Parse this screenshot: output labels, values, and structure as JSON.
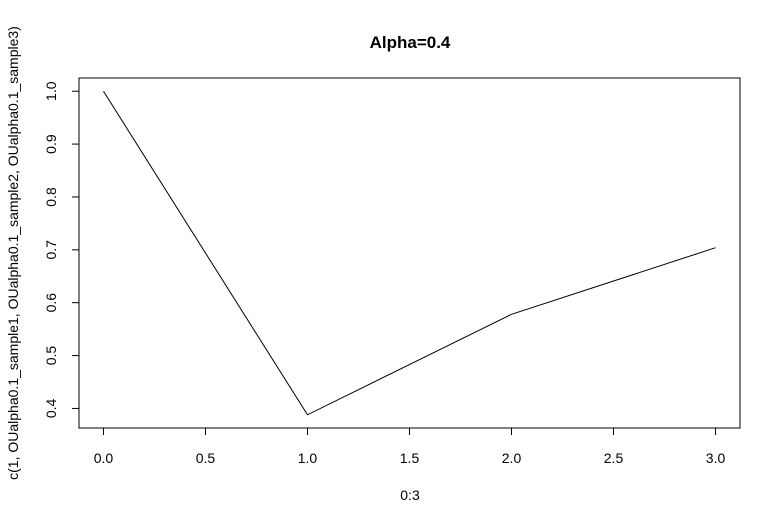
{
  "chart_data": {
    "type": "line",
    "title": "Alpha=0.4",
    "xlabel": "0:3",
    "ylabel": "c(1, OUalpha0.1_sample1, OUalpha0.1_sample2, OUalpha0.1_sample3)",
    "x": [
      0,
      1,
      2,
      3
    ],
    "series": [
      {
        "values": [
          1.0,
          0.388,
          0.578,
          0.704
        ]
      }
    ],
    "xlim": [
      -0.12,
      3.12
    ],
    "ylim": [
      0.363,
      1.025
    ],
    "xticks": [
      0,
      0.5,
      1,
      1.5,
      2,
      2.5,
      3
    ],
    "xtick_labels": [
      "0.0",
      "0.5",
      "1.0",
      "1.5",
      "2.0",
      "2.5",
      "3.0"
    ],
    "yticks": [
      0.4,
      0.5,
      0.6,
      0.7,
      0.8,
      0.9,
      1.0
    ],
    "ytick_labels": [
      "0.4",
      "0.5",
      "0.6",
      "0.7",
      "0.8",
      "0.9",
      "1.0"
    ],
    "line_color": "#000000",
    "grid": false,
    "legend": "none"
  }
}
